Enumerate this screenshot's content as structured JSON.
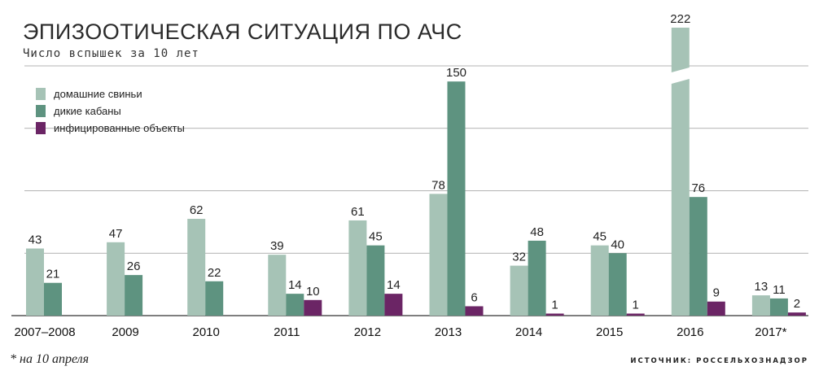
{
  "colors": {
    "domestic": "#a6c3b6",
    "wild": "#5e9380",
    "infected": "#6b2565",
    "grid": "#9a9a9a",
    "axis": "#333333"
  },
  "chart_data": {
    "type": "bar",
    "title": "ЭПИЗООТИЧЕСКАЯ СИТУАЦИЯ ПО АЧС",
    "subtitle": "Число вспышек за 10 лет",
    "categories": [
      "2007–2008",
      "2009",
      "2010",
      "2011",
      "2012",
      "2013",
      "2014",
      "2015",
      "2016",
      "2017*"
    ],
    "series": [
      {
        "name": "домашние свиньи",
        "key": "domestic",
        "values": [
          43,
          47,
          62,
          39,
          61,
          78,
          32,
          45,
          222,
          13
        ]
      },
      {
        "name": "дикие кабаны",
        "key": "wild",
        "values": [
          21,
          26,
          22,
          14,
          45,
          150,
          48,
          40,
          76,
          11
        ]
      },
      {
        "name": "инфицированные объекты",
        "key": "infected",
        "values": [
          null,
          null,
          null,
          10,
          14,
          6,
          1,
          1,
          9,
          2
        ]
      }
    ],
    "axis_break": {
      "category": "2016",
      "series": "домашние свиньи"
    },
    "ylim": [
      0,
      160
    ],
    "grid": true,
    "legend_position": "top-left",
    "footnote": "* на 10 апреля",
    "source": "ИСТОЧНИК: РОССЕЛЬХОЗНАДЗОР"
  }
}
